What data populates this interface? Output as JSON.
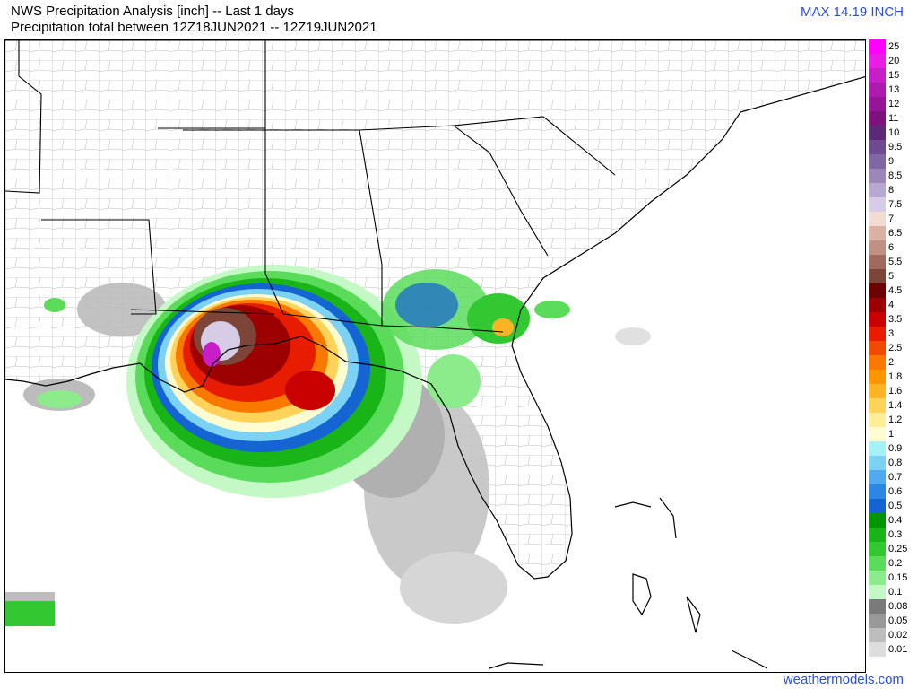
{
  "header": {
    "title_line1": "NWS Precipitation Analysis [inch] -- Last 1 days",
    "title_line2": "Precipitation total between 12Z18JUN2021 -- 12Z19JUN2021",
    "max_label": "MAX 14.19 INCH"
  },
  "footer": {
    "credit": "weathermodels.com"
  },
  "legend": {
    "items": [
      {
        "label": "25",
        "color": "#ff00ff"
      },
      {
        "label": "20",
        "color": "#e61ee6"
      },
      {
        "label": "15",
        "color": "#c81ec8"
      },
      {
        "label": "13",
        "color": "#ad1aad"
      },
      {
        "label": "12",
        "color": "#961596"
      },
      {
        "label": "11",
        "color": "#7d117d"
      },
      {
        "label": "10",
        "color": "#5a2a78"
      },
      {
        "label": "9.5",
        "color": "#6f4a90"
      },
      {
        "label": "9",
        "color": "#8066a3"
      },
      {
        "label": "8.5",
        "color": "#9b87ba"
      },
      {
        "label": "8",
        "color": "#b8a8d0"
      },
      {
        "label": "7.5",
        "color": "#d6cce6"
      },
      {
        "label": "7",
        "color": "#f2dcd2"
      },
      {
        "label": "6.5",
        "color": "#d9b2a4"
      },
      {
        "label": "6",
        "color": "#c19080"
      },
      {
        "label": "5.5",
        "color": "#a06a5c"
      },
      {
        "label": "5",
        "color": "#7d4438"
      },
      {
        "label": "4.5",
        "color": "#6e0000"
      },
      {
        "label": "4",
        "color": "#9c0000"
      },
      {
        "label": "3.5",
        "color": "#c80000"
      },
      {
        "label": "3",
        "color": "#e81c00"
      },
      {
        "label": "2.5",
        "color": "#f04a00"
      },
      {
        "label": "2",
        "color": "#f87800"
      },
      {
        "label": "1.8",
        "color": "#fc9600"
      },
      {
        "label": "1.6",
        "color": "#ffb428"
      },
      {
        "label": "1.4",
        "color": "#ffd25a"
      },
      {
        "label": "1.2",
        "color": "#ffee98"
      },
      {
        "label": "1",
        "color": "#fffcd2"
      },
      {
        "label": "0.9",
        "color": "#a6f0f8"
      },
      {
        "label": "0.8",
        "color": "#7cd2f4"
      },
      {
        "label": "0.7",
        "color": "#50aaf0"
      },
      {
        "label": "0.6",
        "color": "#2c86e4"
      },
      {
        "label": "0.5",
        "color": "#1464d2"
      },
      {
        "label": "0.4",
        "color": "#009600"
      },
      {
        "label": "0.3",
        "color": "#18b418"
      },
      {
        "label": "0.25",
        "color": "#32c832"
      },
      {
        "label": "0.2",
        "color": "#5adc5a"
      },
      {
        "label": "0.15",
        "color": "#8cec8c"
      },
      {
        "label": "0.1",
        "color": "#c4f8c4"
      },
      {
        "label": "0.08",
        "color": "#7a7a7a"
      },
      {
        "label": "0.05",
        "color": "#999999"
      },
      {
        "label": "0.02",
        "color": "#bdbdbd"
      },
      {
        "label": "0.01",
        "color": "#dddddd"
      }
    ]
  },
  "map": {
    "region": "Southeastern United States and Gulf of Mexico",
    "colors": {
      "state_border": "#000000",
      "county_border": "#999999",
      "coastline": "#000000",
      "heavy_core": "#c81ec8"
    }
  }
}
